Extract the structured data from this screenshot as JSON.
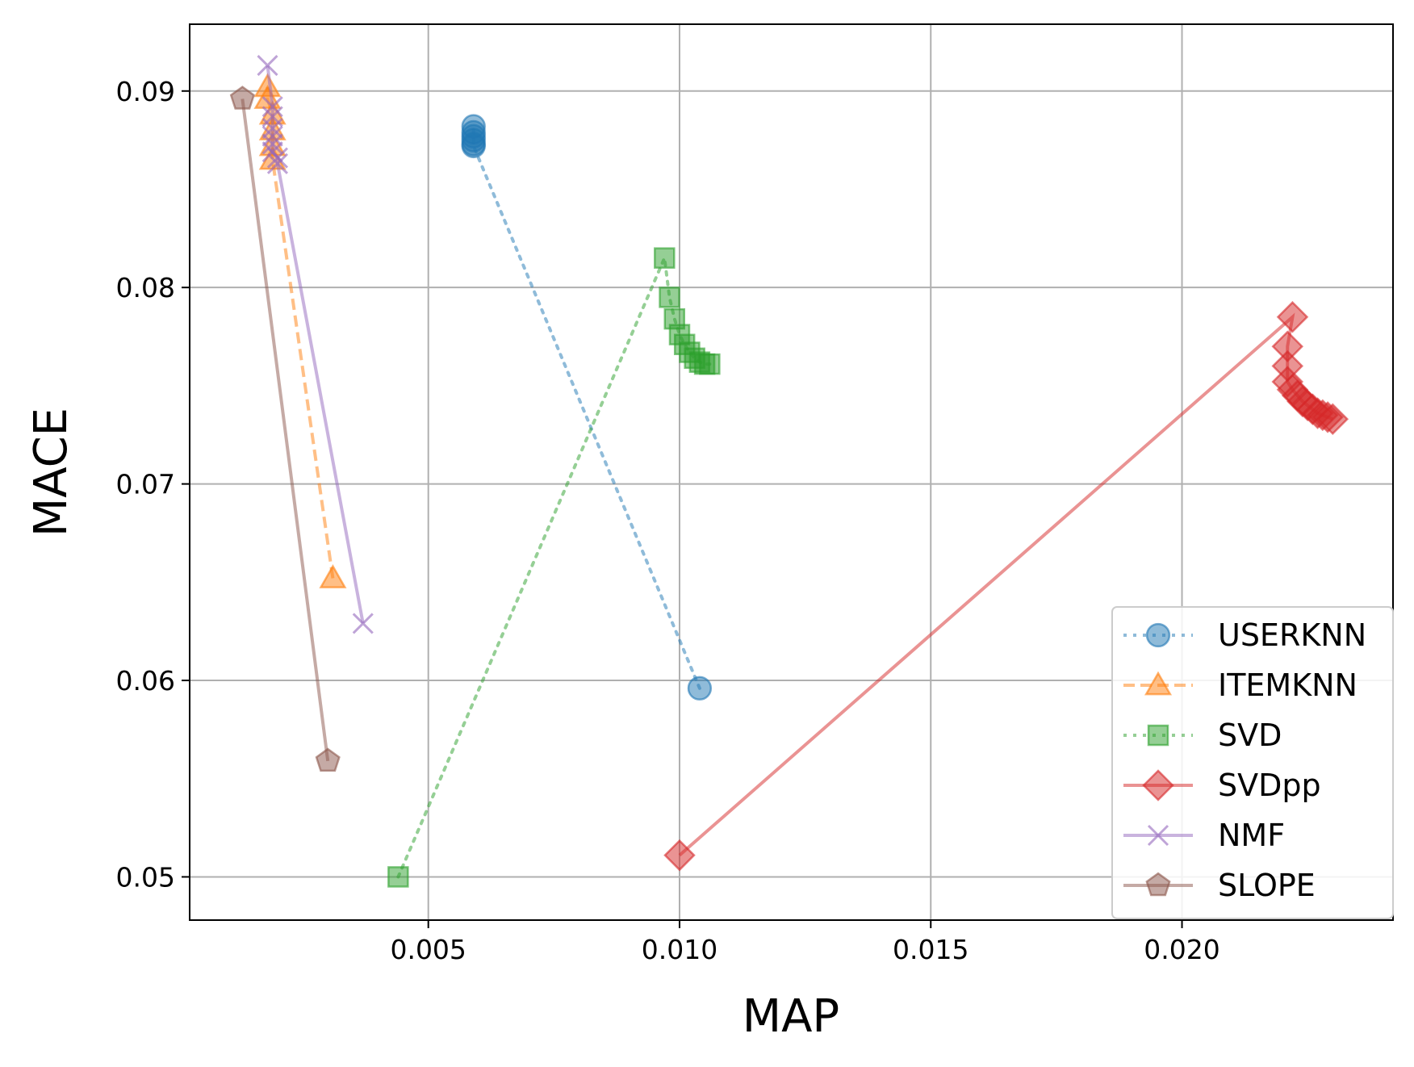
{
  "chart_data": {
    "type": "line",
    "xlabel": "MAP",
    "ylabel": "MACE",
    "xlim": [
      0.00025,
      0.0242
    ],
    "ylim": [
      0.0478,
      0.0934
    ],
    "xticks": [
      "0.005",
      "0.010",
      "0.015",
      "0.020"
    ],
    "yticks": [
      "0.05",
      "0.06",
      "0.07",
      "0.08",
      "0.09"
    ],
    "grid": true,
    "legend_position": "lower right",
    "series": [
      {
        "name": "USERKNN",
        "color": "#1f77b4",
        "linestyle": "dotted",
        "marker": "circle",
        "points": [
          [
            0.0104,
            0.0596
          ],
          [
            0.0059,
            0.0872
          ],
          [
            0.0059,
            0.0873
          ],
          [
            0.0059,
            0.0875
          ],
          [
            0.0059,
            0.0877
          ],
          [
            0.0059,
            0.0879
          ],
          [
            0.0059,
            0.0882
          ]
        ]
      },
      {
        "name": "ITEMKNN",
        "color": "#ff7f0e",
        "linestyle": "dashed",
        "marker": "triangle",
        "points": [
          [
            0.0031,
            0.0652
          ],
          [
            0.0019,
            0.0865
          ],
          [
            0.0019,
            0.0872
          ],
          [
            0.0019,
            0.088
          ],
          [
            0.0019,
            0.0888
          ],
          [
            0.0018,
            0.0896
          ],
          [
            0.0018,
            0.0902
          ]
        ]
      },
      {
        "name": "SVD",
        "color": "#2ca02c",
        "linestyle": "dotted",
        "marker": "square",
        "points": [
          [
            0.0044,
            0.05
          ],
          [
            0.0097,
            0.0815
          ],
          [
            0.0098,
            0.0795
          ],
          [
            0.0099,
            0.0784
          ],
          [
            0.01,
            0.0776
          ],
          [
            0.0101,
            0.0771
          ],
          [
            0.0102,
            0.0767
          ],
          [
            0.0103,
            0.0764
          ],
          [
            0.0104,
            0.0762
          ],
          [
            0.0105,
            0.0761
          ],
          [
            0.0106,
            0.0761
          ]
        ]
      },
      {
        "name": "SVDpp",
        "color": "#d62728",
        "linestyle": "solid",
        "marker": "diamond",
        "points": [
          [
            0.01,
            0.0511
          ],
          [
            0.0222,
            0.0785
          ],
          [
            0.0221,
            0.077
          ],
          [
            0.0221,
            0.076
          ],
          [
            0.0221,
            0.0752
          ],
          [
            0.0222,
            0.0748
          ],
          [
            0.0223,
            0.0745
          ],
          [
            0.0224,
            0.0742
          ],
          [
            0.0225,
            0.074
          ],
          [
            0.0226,
            0.0738
          ],
          [
            0.0227,
            0.0736
          ],
          [
            0.0228,
            0.0735
          ],
          [
            0.0229,
            0.0734
          ],
          [
            0.023,
            0.0733
          ]
        ]
      },
      {
        "name": "NMF",
        "color": "#9467bd",
        "linestyle": "solid",
        "marker": "x",
        "points": [
          [
            0.0037,
            0.0629
          ],
          [
            0.002,
            0.0863
          ],
          [
            0.002,
            0.0866
          ],
          [
            0.0019,
            0.0869
          ],
          [
            0.0019,
            0.0873
          ],
          [
            0.0019,
            0.0877
          ],
          [
            0.0019,
            0.0881
          ],
          [
            0.0019,
            0.0887
          ],
          [
            0.0019,
            0.0892
          ],
          [
            0.0018,
            0.0913
          ]
        ]
      },
      {
        "name": "SLOPE",
        "color": "#8c564b",
        "linestyle": "solid",
        "marker": "pentagon",
        "points": [
          [
            0.003,
            0.0559
          ],
          [
            0.0013,
            0.0896
          ]
        ]
      }
    ]
  }
}
